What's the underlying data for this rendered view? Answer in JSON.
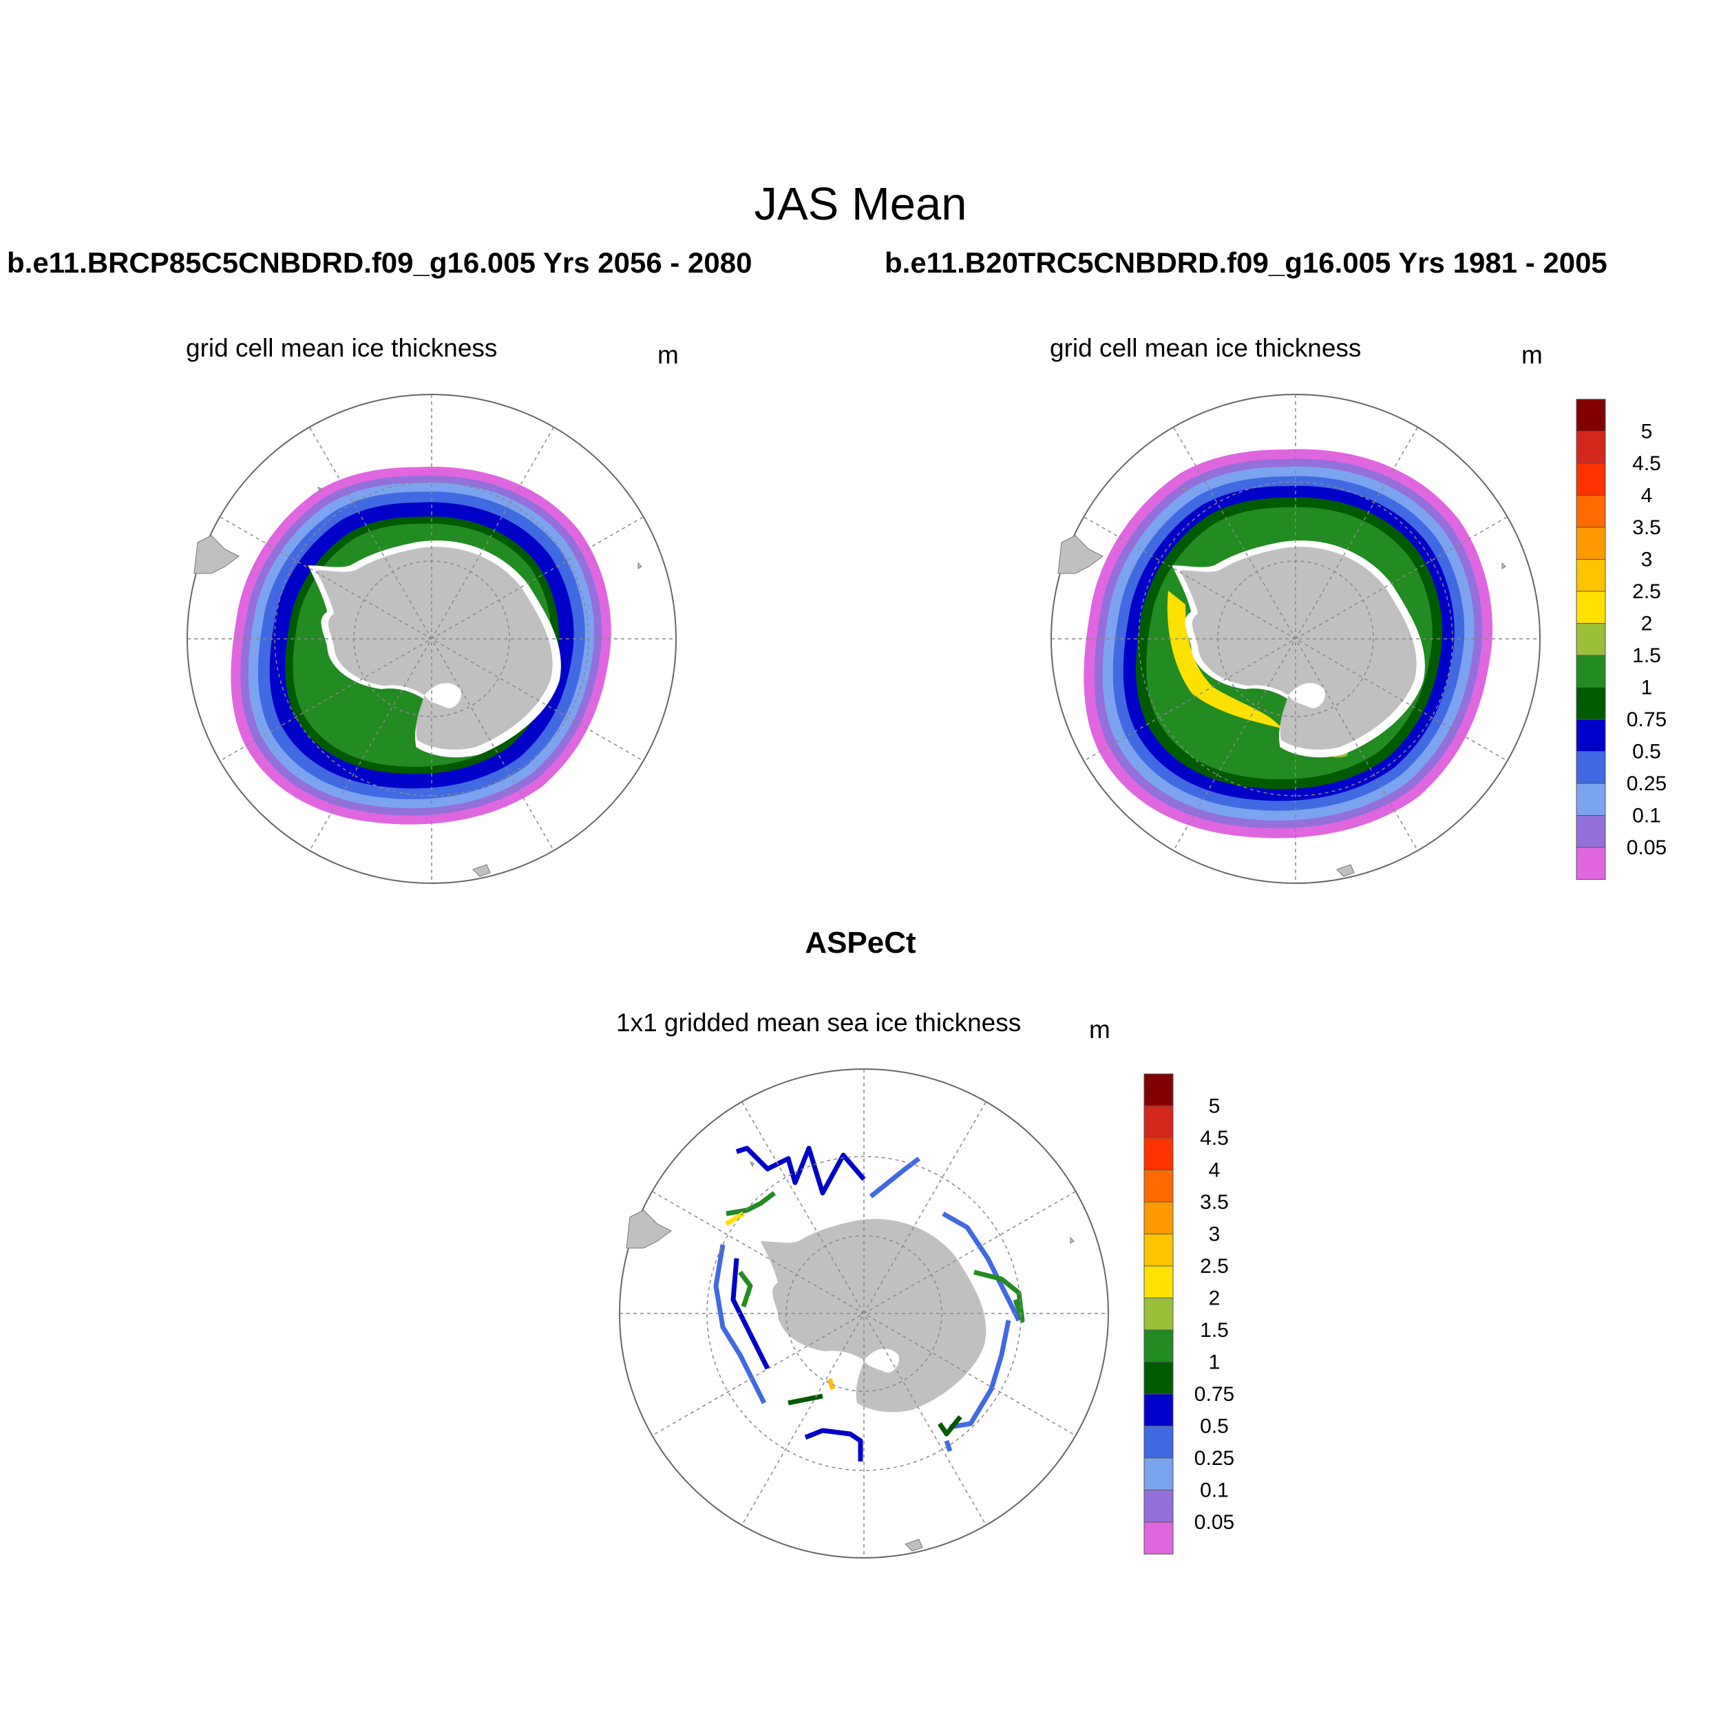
{
  "title": "JAS Mean",
  "case_a": "b.e11.BRCP85C5CNBDRD.f09_g16.005  Yrs 2056 - 2080",
  "case_b": "b.e11.B20TRC5CNBDRD.f09_g16.005  Yrs 1981 - 2005",
  "panel_left": {
    "title": "grid cell mean ice thickness",
    "unit": "m"
  },
  "panel_right": {
    "title": "grid cell mean ice thickness",
    "unit": "m"
  },
  "obs": {
    "title": "ASPeCt",
    "subtitle": "1x1 gridded mean sea ice thickness",
    "unit": "m"
  },
  "colorbar": {
    "labels": [
      "5",
      "4.5",
      "4",
      "3.5",
      "3",
      "2.5",
      "2",
      "1.5",
      "1",
      "0.75",
      "0.5",
      "0.25",
      "0.1",
      "0.05"
    ],
    "colors": [
      "#800000",
      "#d2271a",
      "#ff3300",
      "#ff6a00",
      "#ff9900",
      "#ffc300",
      "#ffe100",
      "#9ac03a",
      "#228b22",
      "#005a00",
      "#0000c8",
      "#4169e1",
      "#7ba3f0",
      "#9370db",
      "#e066e0"
    ]
  },
  "map_colors": {
    "land": "#c0c0c0",
    "ice_shelf": "#ffffff",
    "grid": "#888888"
  }
}
